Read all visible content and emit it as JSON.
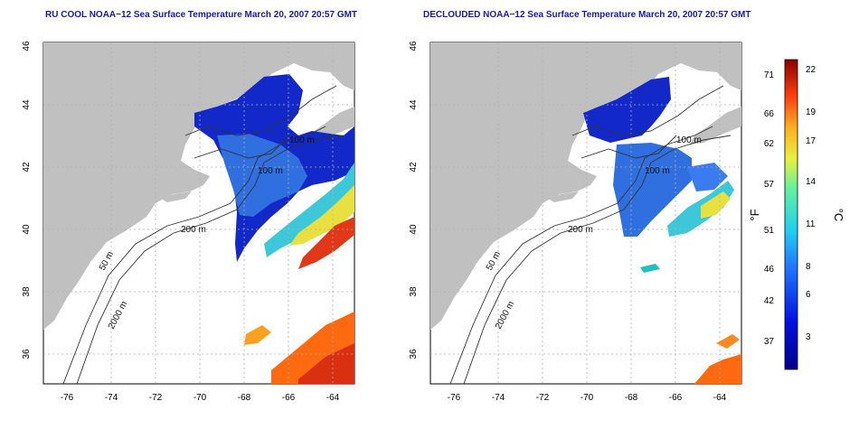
{
  "maps": [
    {
      "title": "RU COOL NOAA−12 Sea Surface Temperature March 20, 2007 20:57 GMT",
      "lon_ticks": [
        "-76",
        "-74",
        "-72",
        "-70",
        "-68",
        "-66",
        "-64"
      ],
      "lat_ticks": [
        "36",
        "38",
        "40",
        "42",
        "44",
        "46"
      ],
      "contour_labels": [
        "100 m",
        "100 m",
        "200 m",
        "50 m",
        "2000 m"
      ]
    },
    {
      "title": "DECLOUDED NOAA−12 Sea Surface Temperature March 20, 2007 20:57 GMT",
      "lon_ticks": [
        "-76",
        "-74",
        "-72",
        "-70",
        "-68",
        "-66",
        "-64"
      ],
      "lat_ticks": [
        "36",
        "38",
        "40",
        "42",
        "44",
        "46"
      ],
      "contour_labels": [
        "100 m",
        "100 m",
        "200 m",
        "50 m",
        "2000 m"
      ]
    }
  ],
  "colorbar": {
    "f_label": "°F",
    "c_label": "°C",
    "f_ticks": [
      "71",
      "66",
      "62",
      "57",
      "51",
      "46",
      "42",
      "37"
    ],
    "c_ticks": [
      "22",
      "19",
      "17",
      "14",
      "11",
      "8",
      "6",
      "3"
    ]
  },
  "colors": {
    "land": "#c0c0c0",
    "grid": "#b0b0b0",
    "contour": "#333333",
    "title": "#1a1aa0",
    "cold": "#1020c0",
    "warm": "#ff5010"
  }
}
